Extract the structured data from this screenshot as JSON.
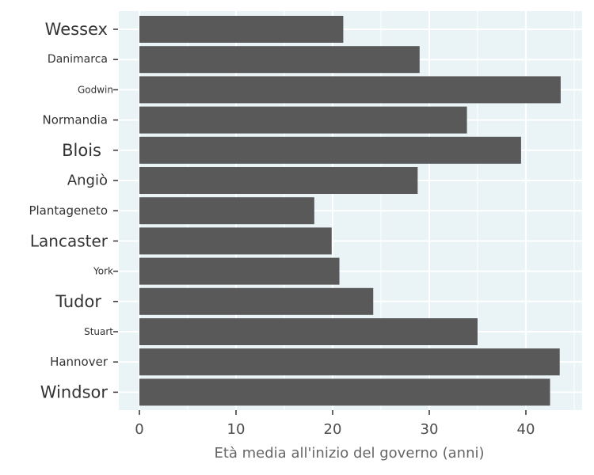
{
  "chart_data": {
    "type": "bar",
    "orientation": "horizontal",
    "categories": [
      "Wessex",
      "Danimarca",
      "Godwin",
      "Normandia",
      "Blois",
      "Angiò",
      "Plantageneto",
      "Lancaster",
      "York",
      "Tudor",
      "Stuart",
      "Hannover",
      "Windsor"
    ],
    "values": [
      21.1,
      29.0,
      43.6,
      33.9,
      39.5,
      28.8,
      18.1,
      19.9,
      20.7,
      24.2,
      35.0,
      43.5,
      42.5
    ],
    "title": "",
    "xlabel": "Età media all'inizio del governo (anni)",
    "ylabel": "",
    "xlim": [
      0,
      45
    ],
    "xticks": [
      0,
      10,
      20,
      30,
      40
    ],
    "grid": true,
    "colors": {
      "bar": "#595959",
      "panel_background": "#eaf3f6",
      "grid": "#ffffff"
    }
  }
}
